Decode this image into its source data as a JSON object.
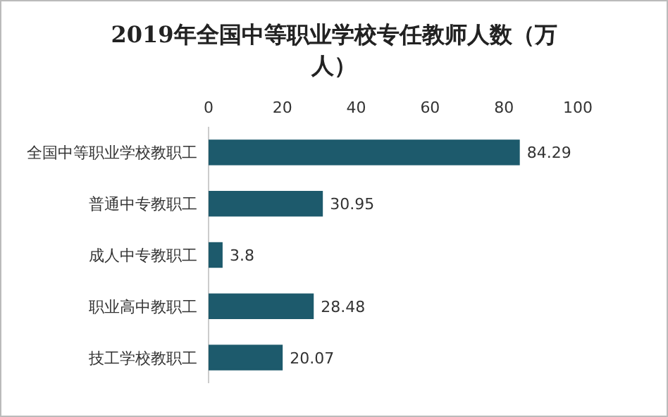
{
  "chart_data": {
    "type": "bar",
    "orientation": "horizontal",
    "title": "2019年全国中等职业学校专任教师人数（万人）",
    "categories": [
      "全国中等职业学校教职工",
      "普通中专教职工",
      "成人中专教职工",
      "职业高中教职工",
      "技工学校教职工"
    ],
    "values": [
      84.29,
      30.95,
      3.8,
      28.48,
      20.07
    ],
    "color": "#1d5a6c",
    "xlim": [
      0,
      100
    ],
    "xticks": [
      0,
      20,
      40,
      60,
      80,
      100
    ],
    "data_labels": true
  }
}
